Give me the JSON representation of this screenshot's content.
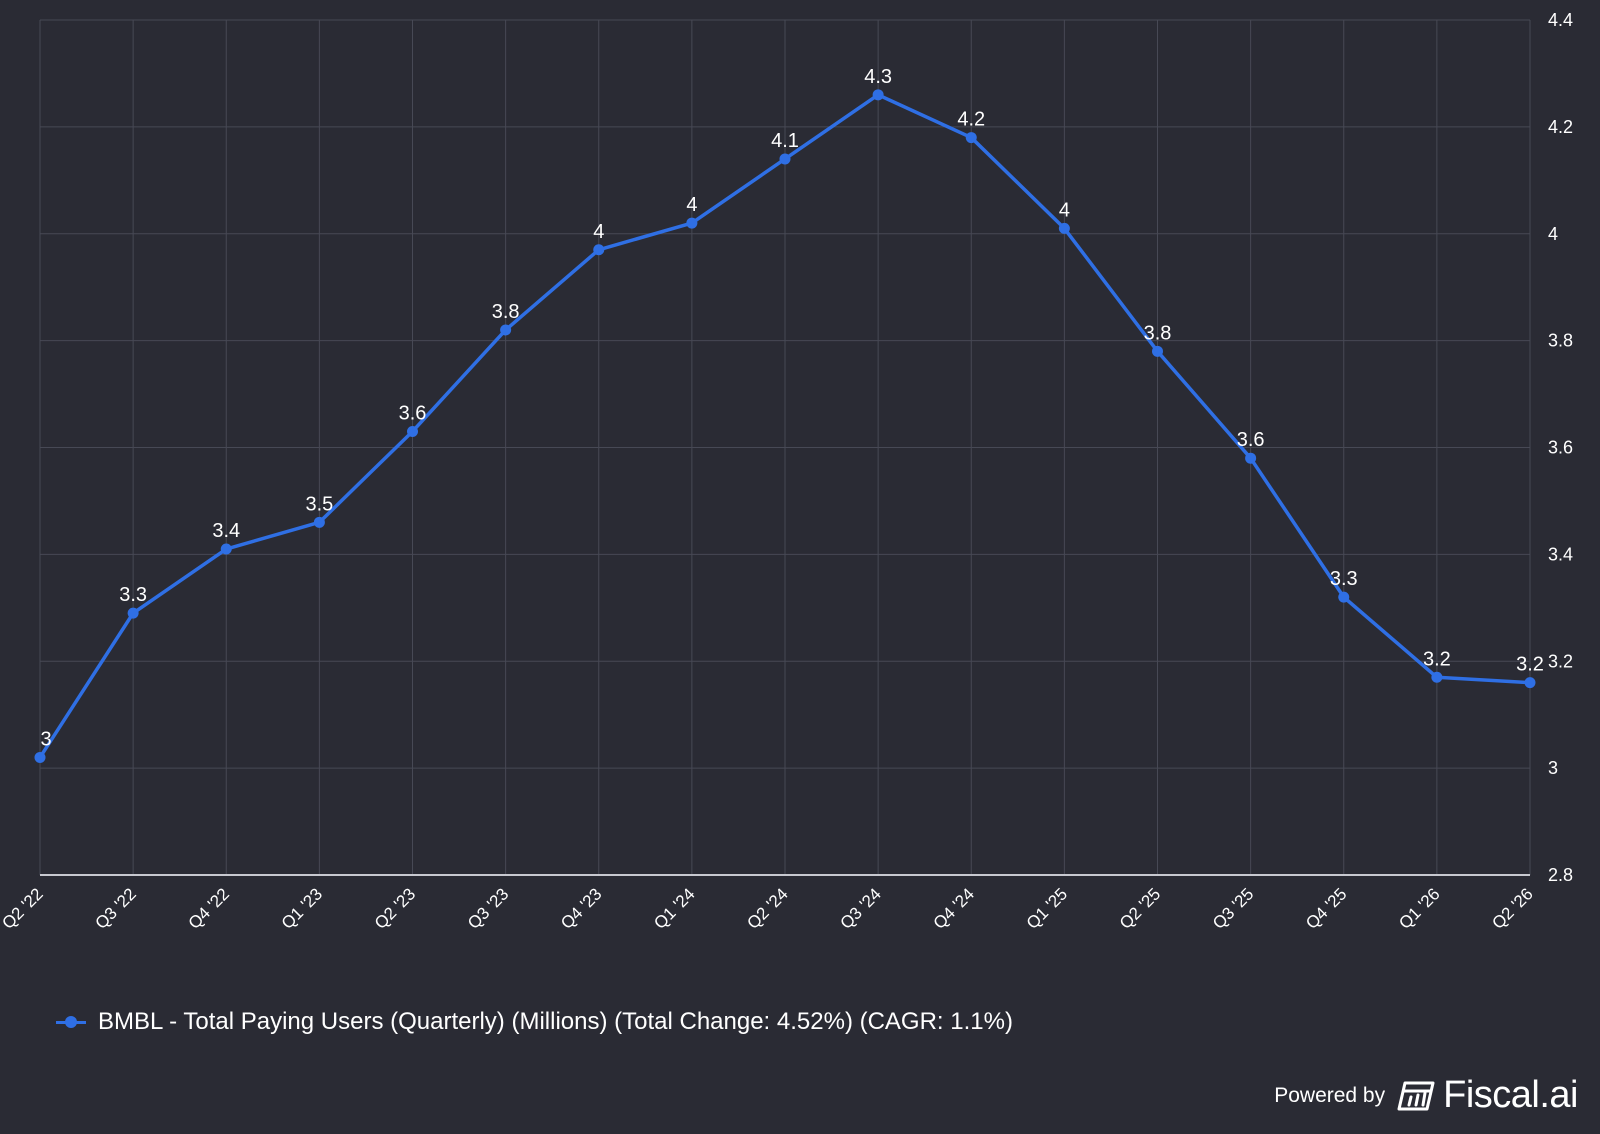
{
  "chart_data": {
    "type": "line",
    "categories": [
      "Q2 '22",
      "Q3 '22",
      "Q4 '22",
      "Q1 '23",
      "Q2 '23",
      "Q3 '23",
      "Q4 '23",
      "Q1 '24",
      "Q2 '24",
      "Q3 '24",
      "Q4 '24",
      "Q1 '25",
      "Q2 '25",
      "Q3 '25",
      "Q4 '25",
      "Q1 '26",
      "Q2 '26"
    ],
    "series": [
      {
        "name": "BMBL - Total Paying Users (Quarterly) (Millions) (Total Change: 4.52%) (CAGR: 1.1%)",
        "values": [
          3.02,
          3.29,
          3.41,
          3.46,
          3.63,
          3.82,
          3.97,
          4.02,
          4.14,
          4.26,
          4.18,
          4.01,
          3.78,
          3.58,
          3.32,
          3.17,
          3.16
        ],
        "labels": [
          "3",
          "3.3",
          "3.4",
          "3.5",
          "3.6",
          "3.8",
          "4",
          "4",
          "4.1",
          "4.3",
          "4.2",
          "4",
          "3.8",
          "3.6",
          "3.3",
          "3.2",
          "3.2"
        ],
        "color": "#2f6fe4"
      }
    ],
    "y_ticks": [
      "2.8",
      "3",
      "3.2",
      "3.4",
      "3.6",
      "3.8",
      "4",
      "4.2",
      "4.4"
    ],
    "ylim": [
      2.8,
      4.4
    ],
    "y_axis_side": "right",
    "grid": true,
    "legend_position": "bottom-left",
    "colors": {
      "background": "#2a2b34",
      "grid": "#474955",
      "axis": "#c8c9d0",
      "text": "#ffffff"
    }
  },
  "footer": {
    "powered_by": "Powered by",
    "brand": "Fiscal.ai",
    "logo_icon": "fiscal-ai-logo-icon"
  }
}
